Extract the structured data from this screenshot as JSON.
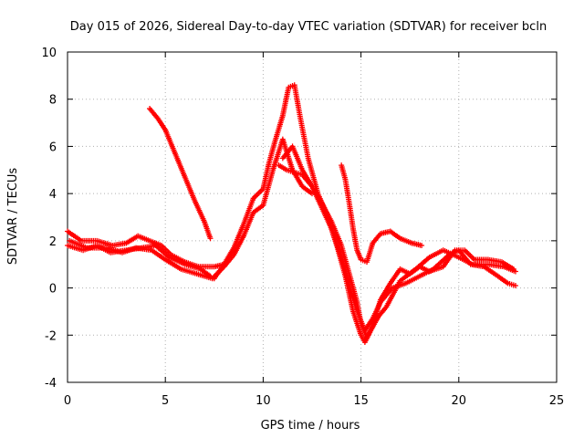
{
  "chart_data": {
    "type": "scatter",
    "title": "Day 015 of 2026, Sidereal Day-to-day VTEC variation (SDTVAR) for receiver bcln",
    "xlabel": "GPS time / hours",
    "ylabel": "SDTVAR / TECUs",
    "xlim": [
      0,
      25
    ],
    "ylim": [
      -4,
      10
    ],
    "x_ticks": [
      "0",
      "5",
      "10",
      "15",
      "20",
      "25"
    ],
    "y_ticks": [
      "-4",
      "-2",
      "0",
      "2",
      "4",
      "6",
      "8",
      "10"
    ],
    "grid": true,
    "marker": "+",
    "series_color": "#ff0000",
    "series": [
      {
        "name": "trace-1",
        "points": [
          [
            0.0,
            1.8
          ],
          [
            0.8,
            1.6
          ],
          [
            1.5,
            1.8
          ],
          [
            2.2,
            1.5
          ],
          [
            3.0,
            1.6
          ],
          [
            3.8,
            1.7
          ],
          [
            4.5,
            1.8
          ],
          [
            5.2,
            1.3
          ],
          [
            6.0,
            1.0
          ],
          [
            6.8,
            0.8
          ],
          [
            7.3,
            0.5
          ]
        ]
      },
      {
        "name": "trace-2",
        "points": [
          [
            0.0,
            2.4
          ],
          [
            0.7,
            2.0
          ],
          [
            1.5,
            2.0
          ],
          [
            2.3,
            1.8
          ],
          [
            3.0,
            1.9
          ],
          [
            3.6,
            2.2
          ],
          [
            4.2,
            2.0
          ],
          [
            4.8,
            1.8
          ],
          [
            5.3,
            1.4
          ],
          [
            6.0,
            1.1
          ],
          [
            6.7,
            0.9
          ],
          [
            7.5,
            0.9
          ],
          [
            8.0,
            1.0
          ]
        ]
      },
      {
        "name": "trace-3",
        "points": [
          [
            0.1,
            2.0
          ],
          [
            1.0,
            1.7
          ],
          [
            2.0,
            1.7
          ],
          [
            2.8,
            1.5
          ],
          [
            3.5,
            1.7
          ],
          [
            4.3,
            1.6
          ],
          [
            5.0,
            1.2
          ],
          [
            5.8,
            0.8
          ],
          [
            6.6,
            0.6
          ],
          [
            7.4,
            0.4
          ],
          [
            8.0,
            0.9
          ],
          [
            8.5,
            1.4
          ],
          [
            9.0,
            2.2
          ],
          [
            9.5,
            3.2
          ],
          [
            10.0,
            3.5
          ],
          [
            10.5,
            5.0
          ],
          [
            11.0,
            6.3
          ],
          [
            11.5,
            5.0
          ],
          [
            12.0,
            4.3
          ],
          [
            12.5,
            4.0
          ]
        ]
      },
      {
        "name": "trace-4",
        "points": [
          [
            4.2,
            7.6
          ],
          [
            4.6,
            7.2
          ],
          [
            5.0,
            6.7
          ],
          [
            5.5,
            5.7
          ],
          [
            6.0,
            4.7
          ],
          [
            6.5,
            3.7
          ],
          [
            7.0,
            2.8
          ],
          [
            7.3,
            2.1
          ]
        ]
      },
      {
        "name": "trace-5",
        "points": [
          [
            7.5,
            0.4
          ],
          [
            8.0,
            1.0
          ],
          [
            8.5,
            1.7
          ],
          [
            9.0,
            2.7
          ],
          [
            9.5,
            3.8
          ],
          [
            10.0,
            4.2
          ],
          [
            10.3,
            5.3
          ],
          [
            10.6,
            6.2
          ],
          [
            11.0,
            7.3
          ],
          [
            11.3,
            8.5
          ],
          [
            11.6,
            8.6
          ],
          [
            11.9,
            7.2
          ],
          [
            12.3,
            5.5
          ],
          [
            12.8,
            4.0
          ],
          [
            13.3,
            3.0
          ],
          [
            13.8,
            1.7
          ],
          [
            14.2,
            0.5
          ],
          [
            14.6,
            -1.0
          ],
          [
            15.0,
            -2.0
          ],
          [
            15.2,
            -2.3
          ],
          [
            15.5,
            -1.8
          ],
          [
            15.9,
            -1.2
          ],
          [
            16.3,
            -0.8
          ],
          [
            17.0,
            0.3
          ],
          [
            17.8,
            0.8
          ],
          [
            18.5,
            1.3
          ],
          [
            19.2,
            1.6
          ],
          [
            20.0,
            1.3
          ],
          [
            20.7,
            1.0
          ],
          [
            21.5,
            1.0
          ],
          [
            22.3,
            0.9
          ],
          [
            22.9,
            0.7
          ]
        ]
      },
      {
        "name": "trace-6",
        "points": [
          [
            10.8,
            5.2
          ],
          [
            11.2,
            5.0
          ],
          [
            11.6,
            4.9
          ],
          [
            12.0,
            4.8
          ],
          [
            12.5,
            4.3
          ],
          [
            13.0,
            3.6
          ],
          [
            13.5,
            2.8
          ],
          [
            14.0,
            1.8
          ],
          [
            14.4,
            0.6
          ],
          [
            14.8,
            -0.6
          ],
          [
            15.0,
            -1.5
          ],
          [
            15.3,
            -2.1
          ],
          [
            15.6,
            -1.6
          ],
          [
            16.0,
            -0.5
          ],
          [
            16.5,
            0.2
          ],
          [
            17.0,
            0.8
          ],
          [
            17.5,
            0.6
          ],
          [
            18.0,
            0.9
          ],
          [
            18.5,
            0.7
          ],
          [
            19.2,
            0.9
          ],
          [
            19.8,
            1.6
          ],
          [
            20.3,
            1.6
          ],
          [
            20.8,
            1.2
          ],
          [
            21.5,
            1.2
          ],
          [
            22.2,
            1.1
          ],
          [
            22.8,
            0.8
          ]
        ]
      },
      {
        "name": "trace-7",
        "points": [
          [
            11.0,
            5.5
          ],
          [
            11.5,
            6.0
          ],
          [
            12.0,
            5.0
          ],
          [
            12.5,
            4.3
          ],
          [
            13.0,
            3.4
          ],
          [
            13.5,
            2.5
          ],
          [
            14.0,
            1.3
          ],
          [
            14.5,
            -0.2
          ],
          [
            14.9,
            -1.2
          ],
          [
            15.2,
            -1.8
          ],
          [
            15.6,
            -1.3
          ],
          [
            16.0,
            -0.6
          ],
          [
            16.6,
            0.0
          ],
          [
            17.3,
            0.2
          ],
          [
            18.0,
            0.5
          ],
          [
            18.7,
            0.8
          ],
          [
            19.5,
            1.4
          ],
          [
            20.0,
            1.6
          ],
          [
            20.6,
            1.0
          ],
          [
            21.3,
            0.9
          ],
          [
            22.0,
            0.5
          ],
          [
            22.5,
            0.2
          ],
          [
            22.9,
            0.1
          ]
        ]
      },
      {
        "name": "trace-8",
        "points": [
          [
            14.0,
            5.2
          ],
          [
            14.2,
            4.6
          ],
          [
            14.4,
            3.6
          ],
          [
            14.6,
            2.5
          ],
          [
            14.8,
            1.6
          ],
          [
            15.0,
            1.2
          ],
          [
            15.3,
            1.1
          ],
          [
            15.6,
            1.9
          ],
          [
            16.0,
            2.3
          ],
          [
            16.5,
            2.4
          ],
          [
            17.0,
            2.1
          ],
          [
            17.6,
            1.9
          ],
          [
            18.1,
            1.8
          ]
        ]
      }
    ]
  }
}
